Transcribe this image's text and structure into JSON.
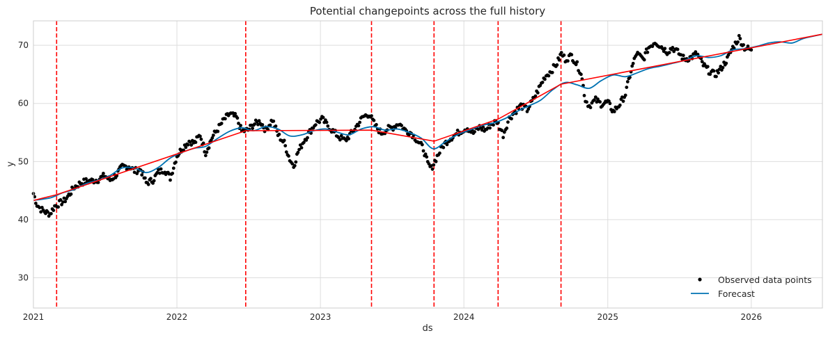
{
  "chart_data": {
    "type": "line",
    "title": "Potential changepoints across the full history",
    "xlabel": "ds",
    "ylabel": "y",
    "xlim": [
      "2021-01-01",
      "2026-07-01"
    ],
    "ylim": [
      24.8,
      74.2
    ],
    "x_ticks": [
      "2021",
      "2022",
      "2023",
      "2024",
      "2025",
      "2026"
    ],
    "y_ticks": [
      30,
      40,
      50,
      60,
      70
    ],
    "grid": true,
    "legend_position": "bottom-right",
    "colors": {
      "observed": "#000000",
      "forecast": "#0072B2",
      "trend": "#ff0000",
      "changepoint": "#ff0000",
      "grid": "#dddddd",
      "frame": "#cccccc"
    },
    "changepoints": [
      "2021-03-01",
      "2022-06-25",
      "2023-05-11",
      "2023-10-17",
      "2024-03-28",
      "2024-09-04"
    ],
    "series": [
      {
        "name": "Observed data points",
        "kind": "scatter",
        "points": [
          [
            "2021-01-01",
            44.5
          ],
          [
            "2021-01-10",
            42.6
          ],
          [
            "2021-01-20",
            41.8
          ],
          [
            "2021-02-01",
            41.3
          ],
          [
            "2021-02-12",
            41.0
          ],
          [
            "2021-02-24",
            42.3
          ],
          [
            "2021-03-08",
            42.8
          ],
          [
            "2021-03-20",
            43.2
          ],
          [
            "2021-04-01",
            44.2
          ],
          [
            "2021-04-15",
            45.6
          ],
          [
            "2021-05-01",
            46.3
          ],
          [
            "2021-05-15",
            46.6
          ],
          [
            "2021-06-01",
            46.7
          ],
          [
            "2021-06-15",
            46.9
          ],
          [
            "2021-07-01",
            47.6
          ],
          [
            "2021-07-15",
            46.8
          ],
          [
            "2021-08-01",
            47.8
          ],
          [
            "2021-08-15",
            49.1
          ],
          [
            "2021-09-01",
            49.2
          ],
          [
            "2021-09-15",
            48.4
          ],
          [
            "2021-10-01",
            48.6
          ],
          [
            "2021-10-15",
            46.3
          ],
          [
            "2021-11-01",
            46.8
          ],
          [
            "2021-11-15",
            48.2
          ],
          [
            "2021-12-01",
            48.6
          ],
          [
            "2021-12-15",
            47.2
          ],
          [
            "2022-01-01",
            51.0
          ],
          [
            "2022-01-15",
            52.3
          ],
          [
            "2022-02-01",
            53.5
          ],
          [
            "2022-02-15",
            53.2
          ],
          [
            "2022-03-01",
            54.6
          ],
          [
            "2022-03-15",
            51.5
          ],
          [
            "2022-04-01",
            54.2
          ],
          [
            "2022-04-15",
            55.6
          ],
          [
            "2022-05-01",
            57.2
          ],
          [
            "2022-05-15",
            58.2
          ],
          [
            "2022-06-01",
            57.6
          ],
          [
            "2022-06-15",
            55.2
          ],
          [
            "2022-07-01",
            55.4
          ],
          [
            "2022-07-15",
            56.4
          ],
          [
            "2022-08-01",
            56.9
          ],
          [
            "2022-08-15",
            55.4
          ],
          [
            "2022-09-01",
            57.2
          ],
          [
            "2022-09-15",
            54.6
          ],
          [
            "2022-10-01",
            53.2
          ],
          [
            "2022-10-15",
            50.4
          ],
          [
            "2022-10-25",
            49.2
          ],
          [
            "2022-11-05",
            51.6
          ],
          [
            "2022-11-20",
            53.6
          ],
          [
            "2022-12-05",
            55.1
          ],
          [
            "2022-12-20",
            56.6
          ],
          [
            "2023-01-05",
            57.3
          ],
          [
            "2023-01-20",
            56.2
          ],
          [
            "2023-02-05",
            55.0
          ],
          [
            "2023-02-20",
            54.1
          ],
          [
            "2023-03-05",
            53.6
          ],
          [
            "2023-03-20",
            54.8
          ],
          [
            "2023-04-05",
            56.3
          ],
          [
            "2023-04-20",
            57.7
          ],
          [
            "2023-05-05",
            58.2
          ],
          [
            "2023-05-20",
            56.2
          ],
          [
            "2023-06-05",
            54.9
          ],
          [
            "2023-06-20",
            55.6
          ],
          [
            "2023-07-05",
            55.9
          ],
          [
            "2023-07-20",
            56.6
          ],
          [
            "2023-08-05",
            55.4
          ],
          [
            "2023-08-20",
            54.9
          ],
          [
            "2023-09-05",
            53.6
          ],
          [
            "2023-09-20",
            52.2
          ],
          [
            "2023-10-01",
            49.6
          ],
          [
            "2023-10-10",
            48.8
          ],
          [
            "2023-10-25",
            50.9
          ],
          [
            "2023-11-10",
            52.8
          ],
          [
            "2023-11-25",
            53.9
          ],
          [
            "2023-12-10",
            54.6
          ],
          [
            "2023-12-25",
            55.3
          ],
          [
            "2024-01-10",
            55.8
          ],
          [
            "2024-01-25",
            54.9
          ],
          [
            "2024-02-10",
            55.9
          ],
          [
            "2024-02-25",
            55.4
          ],
          [
            "2024-03-10",
            56.4
          ],
          [
            "2024-03-25",
            56.9
          ],
          [
            "2024-04-10",
            54.6
          ],
          [
            "2024-04-25",
            57.4
          ],
          [
            "2024-05-10",
            58.6
          ],
          [
            "2024-05-25",
            59.6
          ],
          [
            "2024-06-10",
            58.9
          ],
          [
            "2024-06-25",
            60.6
          ],
          [
            "2024-07-10",
            62.6
          ],
          [
            "2024-07-25",
            64.6
          ],
          [
            "2024-08-10",
            65.6
          ],
          [
            "2024-08-25",
            66.9
          ],
          [
            "2024-09-05",
            68.6
          ],
          [
            "2024-09-15",
            67.6
          ],
          [
            "2024-10-01",
            68.2
          ],
          [
            "2024-10-15",
            66.6
          ],
          [
            "2024-10-25",
            65.3
          ],
          [
            "2024-11-05",
            60.6
          ],
          [
            "2024-11-15",
            59.6
          ],
          [
            "2024-12-01",
            60.6
          ],
          [
            "2024-12-15",
            59.9
          ],
          [
            "2025-01-01",
            60.2
          ],
          [
            "2025-01-15",
            58.6
          ],
          [
            "2025-02-01",
            59.9
          ],
          [
            "2025-02-15",
            61.6
          ],
          [
            "2025-03-01",
            65.6
          ],
          [
            "2025-03-15",
            68.6
          ],
          [
            "2025-04-01",
            67.6
          ],
          [
            "2025-04-15",
            69.6
          ],
          [
            "2025-05-01",
            70.6
          ],
          [
            "2025-05-15",
            69.9
          ],
          [
            "2025-06-01",
            68.9
          ],
          [
            "2025-06-15",
            69.6
          ],
          [
            "2025-07-01",
            68.6
          ],
          [
            "2025-07-15",
            67.6
          ],
          [
            "2025-08-01",
            67.9
          ],
          [
            "2025-08-15",
            68.6
          ],
          [
            "2025-09-01",
            66.6
          ],
          [
            "2025-09-15",
            65.6
          ],
          [
            "2025-10-01",
            64.9
          ],
          [
            "2025-10-15",
            65.9
          ],
          [
            "2025-11-01",
            67.6
          ],
          [
            "2025-11-15",
            69.6
          ],
          [
            "2025-12-01",
            71.3
          ],
          [
            "2025-12-15",
            69.6
          ],
          [
            "2026-01-01",
            69.2
          ]
        ]
      },
      {
        "name": "Forecast",
        "kind": "line",
        "points": [
          [
            "2021-01-01",
            43.3
          ],
          [
            "2021-02-15",
            43.8
          ],
          [
            "2021-03-15",
            44.6
          ],
          [
            "2021-04-15",
            45.2
          ],
          [
            "2021-05-15",
            46.2
          ],
          [
            "2021-06-15",
            46.8
          ],
          [
            "2021-07-15",
            47.6
          ],
          [
            "2021-08-15",
            48.9
          ],
          [
            "2021-09-15",
            48.9
          ],
          [
            "2021-10-15",
            48.1
          ],
          [
            "2021-11-15",
            49.0
          ],
          [
            "2021-12-15",
            50.6
          ],
          [
            "2022-01-15",
            51.6
          ],
          [
            "2022-02-15",
            52.3
          ],
          [
            "2022-03-15",
            52.6
          ],
          [
            "2022-04-15",
            54.0
          ],
          [
            "2022-05-15",
            55.2
          ],
          [
            "2022-06-15",
            55.8
          ],
          [
            "2022-07-15",
            55.3
          ],
          [
            "2022-08-15",
            56.0
          ],
          [
            "2022-09-15",
            55.6
          ],
          [
            "2022-10-15",
            54.4
          ],
          [
            "2022-11-15",
            54.6
          ],
          [
            "2022-12-15",
            55.3
          ],
          [
            "2023-01-15",
            55.6
          ],
          [
            "2023-02-15",
            55.0
          ],
          [
            "2023-03-15",
            54.6
          ],
          [
            "2023-04-15",
            55.6
          ],
          [
            "2023-05-15",
            56.0
          ],
          [
            "2023-06-15",
            55.4
          ],
          [
            "2023-07-15",
            55.6
          ],
          [
            "2023-08-15",
            55.0
          ],
          [
            "2023-09-15",
            54.0
          ],
          [
            "2023-10-15",
            52.2
          ],
          [
            "2023-11-15",
            53.4
          ],
          [
            "2023-12-15",
            54.6
          ],
          [
            "2024-01-15",
            55.4
          ],
          [
            "2024-02-15",
            56.2
          ],
          [
            "2024-03-15",
            56.6
          ],
          [
            "2024-04-15",
            57.4
          ],
          [
            "2024-05-15",
            58.6
          ],
          [
            "2024-06-15",
            59.6
          ],
          [
            "2024-07-15",
            60.6
          ],
          [
            "2024-08-15",
            62.4
          ],
          [
            "2024-09-15",
            63.6
          ],
          [
            "2024-10-15",
            63.2
          ],
          [
            "2024-11-15",
            62.6
          ],
          [
            "2024-12-15",
            63.9
          ],
          [
            "2025-01-15",
            64.9
          ],
          [
            "2025-02-15",
            64.6
          ],
          [
            "2025-03-15",
            65.2
          ],
          [
            "2025-04-15",
            66.0
          ],
          [
            "2025-05-15",
            66.4
          ],
          [
            "2025-06-15",
            66.9
          ],
          [
            "2025-07-15",
            67.4
          ],
          [
            "2025-08-15",
            68.2
          ],
          [
            "2025-09-15",
            67.9
          ],
          [
            "2025-10-15",
            68.2
          ],
          [
            "2025-11-15",
            69.2
          ],
          [
            "2025-12-15",
            69.4
          ],
          [
            "2026-01-15",
            69.8
          ],
          [
            "2026-02-15",
            70.4
          ],
          [
            "2026-03-15",
            70.6
          ],
          [
            "2026-04-15",
            70.4
          ],
          [
            "2026-05-15",
            71.2
          ],
          [
            "2026-07-01",
            71.9
          ]
        ]
      },
      {
        "name": "",
        "kind": "trend",
        "points": [
          [
            "2021-01-01",
            43.3
          ],
          [
            "2021-03-01",
            44.3
          ],
          [
            "2022-06-25",
            55.3
          ],
          [
            "2023-05-11",
            55.4
          ],
          [
            "2023-10-17",
            53.5
          ],
          [
            "2024-03-28",
            57.3
          ],
          [
            "2024-09-04",
            63.3
          ],
          [
            "2026-07-01",
            71.9
          ]
        ]
      }
    ]
  }
}
